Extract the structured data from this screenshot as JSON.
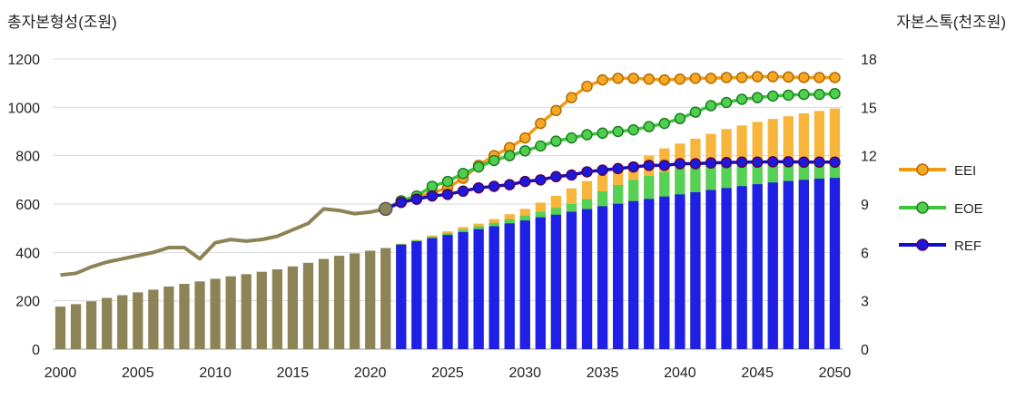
{
  "chart_data": {
    "type": "bar",
    "y_left_label": "총자본형성(조원)",
    "y_right_label": "자본스톡(천조원)",
    "x_ticks": [
      2000,
      2005,
      2010,
      2015,
      2020,
      2025,
      2030,
      2035,
      2040,
      2045,
      2050
    ],
    "y_left_ticks": [
      0,
      200,
      400,
      600,
      800,
      1000,
      1200
    ],
    "y_right_ticks": [
      0,
      3,
      6,
      9,
      12,
      15,
      18
    ],
    "y_left_range": [
      0,
      1200
    ],
    "y_right_range": [
      0,
      18
    ],
    "x_range": [
      2000,
      2050
    ],
    "grid": true,
    "legend_position": "right",
    "colors": {
      "history_bar": "#8c8456",
      "history_line": "#8c8456",
      "ref_bar": "#1f1fe6",
      "eoe_bar": "#55d155",
      "eei_bar": "#f8b53c",
      "eei_line": "#f29b11",
      "eoe_line": "#3cc43c",
      "ref_line": "#1010cc",
      "eei_marker_fill": "#f7a823",
      "eei_marker_edge": "#b36a00",
      "eoe_marker_fill": "#4fcf4f",
      "eoe_marker_edge": "#1e7d1e",
      "ref_marker_fill": "#1a1ae0",
      "ref_marker_edge": "#58004f"
    },
    "history": {
      "years": [
        2000,
        2001,
        2002,
        2003,
        2004,
        2005,
        2006,
        2007,
        2008,
        2009,
        2010,
        2011,
        2012,
        2013,
        2014,
        2015,
        2016,
        2017,
        2018,
        2019,
        2020,
        2021
      ],
      "gross_capital_formation": [
        176,
        186,
        198,
        212,
        223,
        235,
        246,
        259,
        270,
        280,
        291,
        301,
        310,
        320,
        330,
        342,
        357,
        373,
        386,
        396,
        407,
        418
      ],
      "capital_stock": [
        4.6,
        4.7,
        5.1,
        5.4,
        5.6,
        5.8,
        6.0,
        6.3,
        6.3,
        5.6,
        6.6,
        6.8,
        6.7,
        6.8,
        7.0,
        7.4,
        7.8,
        8.7,
        8.6,
        8.4,
        8.5,
        8.7
      ]
    },
    "projection": {
      "years": [
        2022,
        2023,
        2024,
        2025,
        2026,
        2027,
        2028,
        2029,
        2030,
        2031,
        2032,
        2033,
        2034,
        2035,
        2036,
        2037,
        2038,
        2039,
        2040,
        2041,
        2042,
        2043,
        2044,
        2045,
        2046,
        2047,
        2048,
        2049,
        2050
      ],
      "ref_gcf": [
        432,
        446,
        459,
        472,
        484,
        496,
        508,
        520,
        532,
        545,
        556,
        568,
        579,
        591,
        601,
        612,
        621,
        631,
        640,
        649,
        658,
        666,
        674,
        682,
        689,
        695,
        700,
        705,
        708
      ],
      "eoe_gcf": [
        434,
        449,
        464,
        479,
        494,
        508,
        522,
        537,
        552,
        568,
        584,
        600,
        620,
        652,
        679,
        700,
        716,
        732,
        748,
        754,
        760,
        764,
        766,
        768,
        770,
        771,
        772,
        773,
        774
      ],
      "eei_gcf": [
        436,
        452,
        470,
        487,
        505,
        519,
        538,
        558,
        580,
        606,
        634,
        665,
        695,
        720,
        745,
        770,
        800,
        830,
        850,
        870,
        890,
        910,
        925,
        940,
        952,
        963,
        975,
        985,
        995
      ],
      "ref_stock": [
        9.1,
        9.3,
        9.5,
        9.6,
        9.8,
        10.0,
        10.1,
        10.2,
        10.4,
        10.5,
        10.7,
        10.8,
        11.0,
        11.1,
        11.2,
        11.3,
        11.4,
        11.4,
        11.5,
        11.5,
        11.55,
        11.57,
        11.6,
        11.6,
        11.62,
        11.62,
        11.6,
        11.6,
        11.6
      ],
      "eoe_stock": [
        9.2,
        9.5,
        10.1,
        10.4,
        10.9,
        11.3,
        11.7,
        12.0,
        12.3,
        12.6,
        12.9,
        13.1,
        13.3,
        13.4,
        13.5,
        13.6,
        13.8,
        14.0,
        14.3,
        14.7,
        15.1,
        15.3,
        15.5,
        15.6,
        15.7,
        15.75,
        15.8,
        15.8,
        15.85
      ],
      "eei_stock": [
        9.2,
        9.4,
        9.7,
        10.0,
        10.6,
        11.4,
        12.0,
        12.5,
        13.1,
        14.0,
        14.8,
        15.6,
        16.3,
        16.7,
        16.8,
        16.8,
        16.75,
        16.7,
        16.75,
        16.8,
        16.8,
        16.85,
        16.85,
        16.9,
        16.9,
        16.88,
        16.85,
        16.85,
        16.85
      ]
    },
    "legend": [
      {
        "key": "eei",
        "label": "EEI"
      },
      {
        "key": "eoe",
        "label": "EOE"
      },
      {
        "key": "ref",
        "label": "REF"
      }
    ]
  }
}
